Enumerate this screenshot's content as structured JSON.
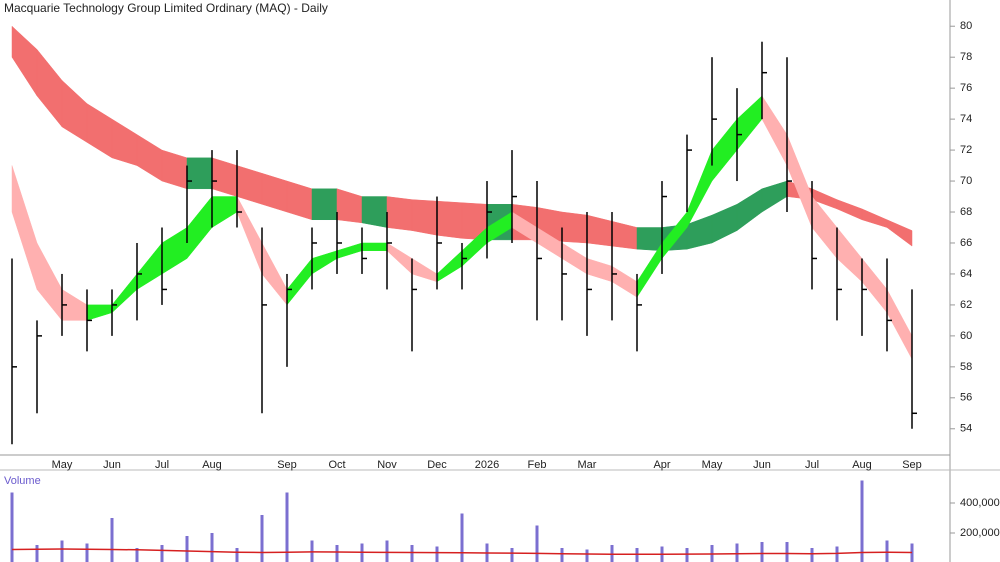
{
  "chart_data": [
    {
      "type": "hlc",
      "title": "Macquarie Technology Group Limited Ordinary (MAQ) - Daily",
      "categories": [
        null,
        null,
        "May",
        null,
        "Jun",
        null,
        "Jul",
        null,
        "Aug",
        null,
        null,
        "Sep",
        null,
        "Oct",
        null,
        "Nov",
        null,
        "Dec",
        null,
        "2026",
        null,
        "Feb",
        null,
        "Mar",
        null,
        null,
        "Apr",
        null,
        "May",
        null,
        "Jun",
        null,
        "Jul",
        null,
        "Aug",
        null,
        "Sep"
      ],
      "high": [
        65,
        61,
        64,
        63,
        63,
        66,
        67,
        71,
        72,
        72,
        67,
        64,
        67,
        68,
        67,
        68,
        65,
        69,
        66,
        70,
        72,
        70,
        67,
        68,
        68,
        64,
        70,
        73,
        78,
        76,
        79,
        78,
        70,
        67,
        65,
        65,
        63
      ],
      "low": [
        53,
        55,
        60,
        59,
        60,
        61,
        62,
        66,
        67,
        67,
        55,
        58,
        63,
        64,
        64,
        63,
        59,
        63,
        63,
        65,
        66,
        61,
        61,
        60,
        61,
        59,
        64,
        68,
        71,
        70,
        74,
        68,
        63,
        61,
        60,
        59,
        54
      ],
      "close": [
        58,
        60,
        62,
        61,
        62,
        64,
        63,
        70,
        70,
        68,
        62,
        63,
        66,
        66,
        65,
        66,
        63,
        66,
        65,
        68,
        69,
        65,
        64,
        63,
        64,
        62,
        69,
        72,
        74,
        73,
        77,
        70,
        65,
        63,
        63,
        61,
        55
      ],
      "color": "#000000",
      "bands": [
        {
          "upper": [
            80,
            78.5,
            76.5,
            75,
            74,
            73,
            72,
            71.5,
            71.5,
            71,
            70.5,
            70,
            69.5,
            69.5,
            69,
            69,
            68.8,
            68.7,
            68.6,
            68.5,
            68.5,
            68.3,
            68,
            67.8,
            67.4,
            67,
            67,
            67.2,
            67.8,
            68.5,
            69.5,
            70,
            69.5,
            68.8,
            68.2,
            67.5,
            66.8
          ],
          "lower": [
            78,
            75.5,
            73.5,
            72.5,
            71.5,
            71,
            70,
            69.5,
            69.5,
            69,
            68.5,
            68,
            67.5,
            67.5,
            67.3,
            67,
            66.8,
            66.5,
            66.3,
            66.2,
            66.2,
            66.2,
            66.1,
            66,
            65.8,
            65.6,
            65.5,
            65.6,
            66,
            66.8,
            68,
            69,
            68.8,
            68.2,
            67.5,
            67,
            65.8
          ],
          "up_color": "#2e9e5b",
          "down_color": "#f26f6f"
        },
        {
          "upper": [
            71,
            66,
            63,
            62,
            62,
            64,
            66,
            67,
            69,
            69,
            66,
            63,
            65,
            65.5,
            66,
            66,
            65,
            64,
            65.5,
            67,
            68,
            67,
            66,
            65,
            64.5,
            63.5,
            66,
            68,
            72,
            74,
            75.5,
            73,
            69,
            67,
            65,
            63,
            60
          ],
          "lower": [
            68,
            63,
            61,
            61,
            61.5,
            63,
            64,
            65,
            67,
            68,
            64,
            62,
            64,
            65,
            65.5,
            65.5,
            64,
            63.5,
            64.5,
            66,
            67,
            66,
            65,
            64,
            63.5,
            62.5,
            65,
            67,
            70,
            72,
            74,
            71,
            67,
            65,
            63.5,
            61.5,
            58.5
          ],
          "up_color": "#22ee22",
          "down_color": "#ffb0b0"
        }
      ],
      "ylim": [
        52.5,
        81.5
      ],
      "yticks": [
        54,
        56,
        58,
        60,
        62,
        64,
        66,
        68,
        70,
        72,
        74,
        76,
        78,
        80
      ]
    },
    {
      "type": "bar",
      "title": "Volume",
      "values": [
        470000,
        120000,
        150000,
        130000,
        300000,
        100000,
        120000,
        180000,
        200000,
        100000,
        320000,
        470000,
        150000,
        120000,
        130000,
        150000,
        120000,
        110000,
        330000,
        130000,
        100000,
        250000,
        100000,
        90000,
        120000,
        100000,
        110000,
        100000,
        120000,
        130000,
        140000,
        140000,
        100000,
        110000,
        550000,
        150000,
        130000
      ],
      "color": "#7b6fd0",
      "ma": {
        "color": "#d62020",
        "values": [
          90000,
          92000,
          93000,
          92000,
          90000,
          88000,
          84000,
          80000,
          76000,
          72000,
          70000,
          72000,
          74000,
          73000,
          72000,
          71000,
          70000,
          69000,
          68000,
          67000,
          66000,
          64000,
          62000,
          60000,
          58000,
          58000,
          58000,
          59000,
          60000,
          62000,
          63000,
          63000,
          62000,
          64000,
          70000,
          72000,
          70000
        ]
      },
      "ylim": [
        0,
        620000
      ],
      "yticks": [
        {
          "value": 200000,
          "label": "200,000"
        },
        {
          "value": 400000,
          "label": "400,000"
        }
      ]
    }
  ]
}
